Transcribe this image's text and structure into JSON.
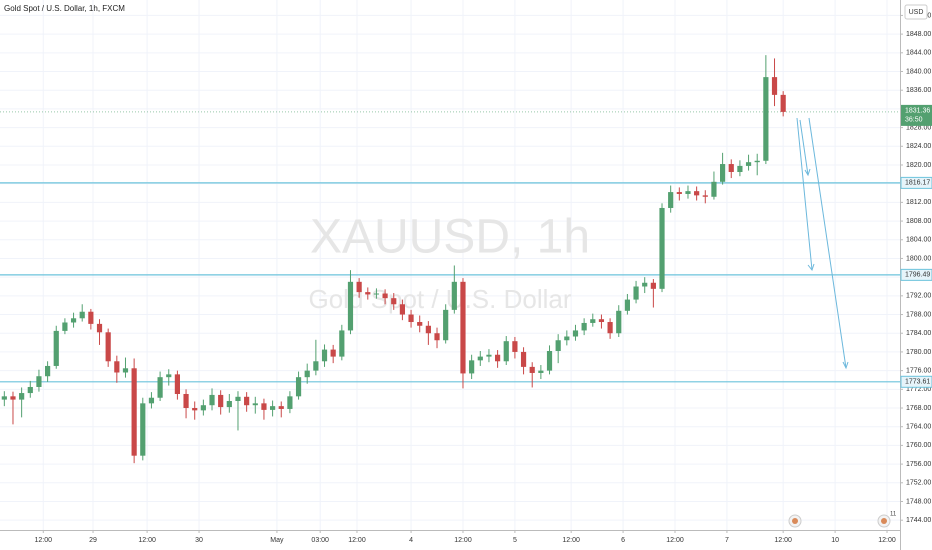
{
  "chart_data": {
    "type": "candlestick",
    "title": "Gold Spot / U.S. Dollar, 1h, FXCM",
    "watermark_symbol": "XAUUSD, 1h",
    "watermark_name": "Gold Spot / U.S. Dollar",
    "currency": "USD",
    "up_color": "#53a070",
    "down_color": "#c94848",
    "open": [
      1769.8,
      1770.5,
      1769.8,
      1771.2,
      1772.5,
      1774.8,
      1777,
      1784.5,
      1786.3,
      1787.2,
      1788.6,
      1786,
      1784.2,
      1778,
      1775.6,
      1776.5,
      1757.8,
      1769,
      1770.2,
      1774.6,
      1775.2,
      1771,
      1768,
      1767.5,
      1768.6,
      1770.8,
      1768.2,
      1769.5,
      1770.4,
      1768.6,
      1769,
      1767.6,
      1768.4,
      1767.8,
      1770.5,
      1774.6,
      1776,
      1778,
      1780.5,
      1779,
      1784.6,
      1795,
      1792.8,
      1792.3,
      1792.5,
      1791.5,
      1790.2,
      1788,
      1786.4,
      1785.6,
      1784,
      1782.5,
      1789,
      1795,
      1775.4,
      1778.2,
      1779,
      1779.4,
      1778,
      1782.3,
      1780,
      1776.8,
      1775.5,
      1776,
      1780.2,
      1782.5,
      1783.3,
      1784.6,
      1786.2,
      1787,
      1786.4,
      1784,
      1788.8,
      1791.2,
      1794,
      1794.8,
      1793.5,
      1810.8,
      1814.2,
      1813.8,
      1814.4,
      1813.5,
      1813.2,
      1816.4,
      1820.2,
      1818.5,
      1819.8,
      1820.6,
      1820.9,
      1838.8,
      1835
    ],
    "high": [
      1771.6,
      1771.5,
      1772.4,
      1773.8,
      1776.2,
      1778,
      1785.6,
      1787.2,
      1788.4,
      1790.2,
      1789.2,
      1787,
      1785,
      1779.2,
      1778.8,
      1778.6,
      1770.2,
      1771.4,
      1775.8,
      1776.3,
      1776,
      1772,
      1769.4,
      1769.8,
      1772.2,
      1771.8,
      1771,
      1771.6,
      1771.4,
      1770.4,
      1770,
      1769.6,
      1769.4,
      1771.6,
      1775.8,
      1777.5,
      1782.6,
      1781.6,
      1781.5,
      1785.8,
      1797.5,
      1795.8,
      1793.8,
      1793.6,
      1793.4,
      1792.6,
      1791.2,
      1789,
      1787.8,
      1786.6,
      1785.2,
      1790.2,
      1798.5,
      1795.8,
      1779.4,
      1780.2,
      1780.6,
      1780.4,
      1783.4,
      1783.2,
      1781,
      1777.8,
      1777.2,
      1781.4,
      1783.8,
      1784.6,
      1785.8,
      1787.2,
      1788.2,
      1788,
      1787.2,
      1790,
      1792.4,
      1795.2,
      1796,
      1795.6,
      1811.8,
      1815.6,
      1815.2,
      1815.6,
      1815.4,
      1814.6,
      1818.6,
      1822.6,
      1821.2,
      1821,
      1822.2,
      1822.4,
      1843.5,
      1842.8,
      1835.8
    ],
    "low": [
      1768.4,
      1764.5,
      1766,
      1770.2,
      1771.5,
      1773.6,
      1776.4,
      1783.8,
      1785.2,
      1786.5,
      1784.8,
      1781.5,
      1776.8,
      1773.4,
      1774.5,
      1756.2,
      1756.8,
      1767.9,
      1769.5,
      1772.8,
      1769.8,
      1765.8,
      1765.5,
      1766.4,
      1767.5,
      1766.6,
      1767,
      1763.2,
      1767.2,
      1766.8,
      1765.5,
      1766.2,
      1766,
      1766.9,
      1769.8,
      1773.2,
      1775,
      1776.8,
      1777.6,
      1778.2,
      1783.8,
      1791.6,
      1791.2,
      1791.4,
      1790.2,
      1789,
      1786.8,
      1785.2,
      1784.2,
      1781.5,
      1780.8,
      1781.8,
      1788.2,
      1772.2,
      1774.2,
      1777,
      1777.8,
      1776.6,
      1777.2,
      1778.6,
      1775.2,
      1772.4,
      1774.2,
      1775.2,
      1777.6,
      1781.4,
      1782.4,
      1783.6,
      1785.4,
      1785,
      1782.8,
      1783.2,
      1788,
      1790.4,
      1792.6,
      1789.5,
      1792.8,
      1809.8,
      1812.4,
      1812.8,
      1812.4,
      1811.8,
      1812.6,
      1815.8,
      1817.2,
      1817.6,
      1818.8,
      1817.8,
      1820.2,
      1832.6,
      1830.4
    ],
    "close": [
      1770.5,
      1769.8,
      1771.2,
      1772.5,
      1774.8,
      1777,
      1784.5,
      1786.3,
      1787.2,
      1788.6,
      1786,
      1784.2,
      1778,
      1775.6,
      1776.5,
      1757.8,
      1769,
      1770.2,
      1774.6,
      1775.2,
      1771,
      1768,
      1767.5,
      1768.6,
      1770.8,
      1768.2,
      1769.5,
      1770.4,
      1768.6,
      1769,
      1767.6,
      1768.4,
      1767.8,
      1770.5,
      1774.6,
      1776,
      1778,
      1780.5,
      1779,
      1784.6,
      1795,
      1792.8,
      1792.3,
      1792.5,
      1791.5,
      1790.2,
      1788,
      1786.4,
      1785.6,
      1784,
      1782.5,
      1789,
      1795,
      1775.4,
      1778.2,
      1779,
      1779.4,
      1778,
      1782.3,
      1780,
      1776.8,
      1775.5,
      1776,
      1780.2,
      1782.5,
      1783.3,
      1784.6,
      1786.2,
      1787,
      1786.4,
      1784,
      1788.8,
      1791.2,
      1794,
      1794.8,
      1793.5,
      1810.8,
      1814.2,
      1813.8,
      1814.4,
      1813.5,
      1813.2,
      1816.4,
      1820.2,
      1818.5,
      1819.8,
      1820.6,
      1820.9,
      1838.8,
      1835,
      1831.36
    ],
    "levels": [
      1816.17,
      1796.49,
      1773.61
    ],
    "level_color": "#6cc3dc",
    "last_price": 1831.36,
    "countdown": "36:50",
    "event_badge": "11",
    "ylim": [
      1741.9,
      1855.3
    ],
    "yticks": [
      {
        "value": 1744,
        "label": "1744.00"
      },
      {
        "value": 1748,
        "label": "1748.00"
      },
      {
        "value": 1752,
        "label": "1752.00"
      },
      {
        "value": 1756,
        "label": "1756.00"
      },
      {
        "value": 1760,
        "label": "1760.00"
      },
      {
        "value": 1764,
        "label": "1764.00"
      },
      {
        "value": 1768,
        "label": "1768.00"
      },
      {
        "value": 1772,
        "label": "1772.00"
      },
      {
        "value": 1776,
        "label": "1776.00"
      },
      {
        "value": 1780,
        "label": "1780.00"
      },
      {
        "value": 1784,
        "label": "1784.00"
      },
      {
        "value": 1788,
        "label": "1788.00"
      },
      {
        "value": 1792,
        "label": "1792.00"
      },
      {
        "value": 1796,
        "label": "1796.00"
      },
      {
        "value": 1800,
        "label": "1800.00"
      },
      {
        "value": 1804,
        "label": "1804.00"
      },
      {
        "value": 1808,
        "label": "1808.00"
      },
      {
        "value": 1812,
        "label": "1812.00"
      },
      {
        "value": 1816,
        "label": "1816.00"
      },
      {
        "value": 1820,
        "label": "1820.00"
      },
      {
        "value": 1824,
        "label": "1824.00"
      },
      {
        "value": 1828,
        "label": "1828.00"
      },
      {
        "value": 1832,
        "label": "1832.00"
      },
      {
        "value": 1836,
        "label": "1836.00"
      },
      {
        "value": 1840,
        "label": "1840.00"
      },
      {
        "value": 1844,
        "label": "1844.00"
      },
      {
        "value": 1848,
        "label": "1848.00"
      },
      {
        "value": 1852,
        "label": "1852.00"
      }
    ],
    "xlim": [
      0,
      104
    ],
    "xticks": [
      {
        "value": 5,
        "label": "12:00"
      },
      {
        "value": 10.75,
        "label": "29"
      },
      {
        "value": 17,
        "label": "12:00"
      },
      {
        "value": 23,
        "label": "30"
      },
      {
        "value": 32,
        "label": "May"
      },
      {
        "value": 37,
        "label": "03:00"
      },
      {
        "value": 41.25,
        "label": "12:00"
      },
      {
        "value": 47.5,
        "label": "4"
      },
      {
        "value": 53.5,
        "label": "12:00"
      },
      {
        "value": 59.5,
        "label": "5"
      },
      {
        "value": 66,
        "label": "12:00"
      },
      {
        "value": 72,
        "label": "6"
      },
      {
        "value": 78,
        "label": "12:00"
      },
      {
        "value": 84,
        "label": "7"
      },
      {
        "value": 90.5,
        "label": "12:00"
      },
      {
        "value": 96.5,
        "label": "10"
      },
      {
        "value": 102.5,
        "label": "12:00"
      }
    ],
    "grid": true
  }
}
